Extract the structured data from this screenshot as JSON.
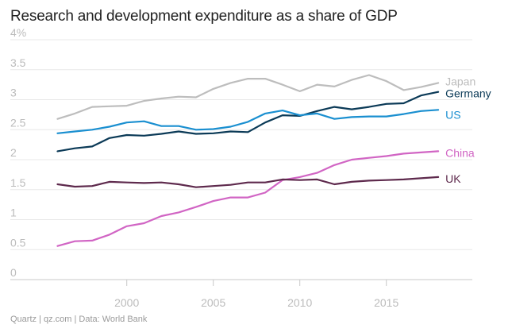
{
  "header": {
    "title": "Research and development expenditure as a share of GDP"
  },
  "footer": {
    "source": "Quartz | qz.com | Data: World Bank"
  },
  "chart_data": {
    "type": "line",
    "title": "Research and development expenditure as a share of GDP",
    "xlabel": "",
    "ylabel": "",
    "xlim": [
      1996,
      2018
    ],
    "ylim": [
      0,
      4
    ],
    "y_ticks": [
      0,
      0.5,
      1,
      1.5,
      2,
      2.5,
      3,
      3.5,
      4
    ],
    "y_tick_labels": [
      "0",
      "0.5",
      "1",
      "1.5",
      "2",
      "2.5",
      "3",
      "3.5",
      "4%"
    ],
    "x_ticks": [
      2000,
      2005,
      2010,
      2015
    ],
    "x_tick_labels": [
      "2000",
      "2005",
      "2010",
      "2015"
    ],
    "grid": true,
    "legend": "labels at line ends (right)",
    "x": [
      1996,
      1997,
      1998,
      1999,
      2000,
      2001,
      2002,
      2003,
      2004,
      2005,
      2006,
      2007,
      2008,
      2009,
      2010,
      2011,
      2012,
      2013,
      2014,
      2015,
      2016,
      2017,
      2018
    ],
    "series": [
      {
        "name": "Japan",
        "color": "#bdbdbd",
        "values": [
          2.68,
          2.77,
          2.88,
          2.89,
          2.9,
          2.98,
          3.02,
          3.05,
          3.04,
          3.18,
          3.28,
          3.35,
          3.35,
          3.25,
          3.14,
          3.25,
          3.22,
          3.33,
          3.41,
          3.31,
          3.16,
          3.21,
          3.28
        ]
      },
      {
        "name": "Germany",
        "color": "#0b3a57",
        "values": [
          2.14,
          2.19,
          2.22,
          2.36,
          2.41,
          2.4,
          2.43,
          2.47,
          2.43,
          2.44,
          2.47,
          2.46,
          2.62,
          2.74,
          2.73,
          2.81,
          2.88,
          2.84,
          2.88,
          2.93,
          2.94,
          3.07,
          3.13
        ]
      },
      {
        "name": "US",
        "color": "#1a8fd0",
        "values": [
          2.44,
          2.47,
          2.5,
          2.55,
          2.62,
          2.64,
          2.56,
          2.56,
          2.5,
          2.51,
          2.55,
          2.63,
          2.77,
          2.82,
          2.74,
          2.77,
          2.68,
          2.71,
          2.72,
          2.72,
          2.76,
          2.81,
          2.83
        ]
      },
      {
        "name": "China",
        "color": "#d165c4",
        "values": [
          0.56,
          0.64,
          0.65,
          0.75,
          0.89,
          0.94,
          1.06,
          1.12,
          1.21,
          1.31,
          1.37,
          1.37,
          1.45,
          1.66,
          1.71,
          1.78,
          1.91,
          2.0,
          2.03,
          2.06,
          2.1,
          2.12,
          2.14
        ]
      },
      {
        "name": "UK",
        "color": "#5e2a4d",
        "values": [
          1.59,
          1.55,
          1.56,
          1.63,
          1.62,
          1.61,
          1.62,
          1.59,
          1.54,
          1.56,
          1.58,
          1.62,
          1.62,
          1.67,
          1.66,
          1.67,
          1.59,
          1.63,
          1.65,
          1.66,
          1.67,
          1.69,
          1.71
        ]
      }
    ]
  }
}
